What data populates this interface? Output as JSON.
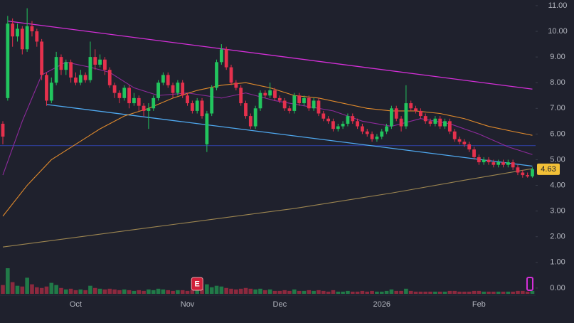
{
  "chart_data": {
    "type": "candlestick",
    "categories": [
      null,
      null,
      null,
      null,
      null,
      null,
      null,
      null,
      null,
      null,
      null,
      null,
      null,
      null,
      null,
      "Oct",
      null,
      null,
      null,
      null,
      null,
      null,
      null,
      null,
      null,
      null,
      null,
      null,
      null,
      null,
      null,
      null,
      null,
      null,
      null,
      null,
      null,
      null,
      "Nov",
      null,
      null,
      null,
      null,
      null,
      null,
      null,
      null,
      null,
      null,
      null,
      null,
      null,
      null,
      null,
      null,
      null,
      null,
      "Dec",
      null,
      null,
      null,
      null,
      null,
      null,
      null,
      null,
      null,
      null,
      null,
      null,
      null,
      null,
      null,
      null,
      null,
      null,
      null,
      null,
      "2026",
      null,
      null,
      null,
      null,
      null,
      null,
      null,
      null,
      null,
      null,
      null,
      null,
      null,
      null,
      null,
      null,
      null,
      null,
      null,
      "Feb",
      null,
      null,
      null,
      null,
      null,
      null,
      null,
      null,
      null,
      null,
      null
    ],
    "ohlc": [
      [
        6.4,
        6.5,
        5.6,
        5.9
      ],
      [
        7.4,
        10.6,
        7.3,
        10.3
      ],
      [
        10.3,
        10.5,
        9.4,
        9.8
      ],
      [
        9.8,
        10.3,
        9.6,
        10.1
      ],
      [
        10.1,
        10.2,
        9.1,
        9.3
      ],
      [
        9.3,
        10.9,
        9.2,
        10.2
      ],
      [
        10.2,
        10.4,
        9.8,
        10.0
      ],
      [
        10.0,
        10.1,
        9.4,
        9.6
      ],
      [
        9.6,
        9.7,
        8.1,
        8.3
      ],
      [
        8.3,
        8.4,
        7.1,
        7.3
      ],
      [
        7.3,
        8.2,
        7.2,
        8.0
      ],
      [
        8.0,
        9.2,
        7.9,
        9.0
      ],
      [
        9.0,
        9.1,
        8.3,
        8.5
      ],
      [
        8.5,
        8.9,
        8.3,
        8.8
      ],
      [
        8.8,
        8.9,
        8.0,
        8.2
      ],
      [
        8.2,
        8.4,
        7.9,
        8.0
      ],
      [
        8.0,
        8.5,
        7.9,
        8.3
      ],
      [
        8.3,
        8.4,
        8.0,
        8.1
      ],
      [
        8.1,
        9.6,
        8.0,
        9.0
      ],
      [
        9.0,
        9.3,
        8.5,
        8.7
      ],
      [
        8.7,
        9.1,
        8.6,
        8.9
      ],
      [
        8.9,
        9.0,
        8.3,
        8.5
      ],
      [
        8.5,
        8.6,
        7.8,
        7.9
      ],
      [
        7.9,
        8.0,
        7.4,
        7.6
      ],
      [
        7.6,
        7.7,
        7.2,
        7.4
      ],
      [
        7.4,
        7.9,
        7.3,
        7.8
      ],
      [
        7.8,
        7.9,
        7.0,
        7.2
      ],
      [
        7.2,
        7.6,
        7.1,
        7.4
      ],
      [
        7.4,
        7.5,
        6.9,
        7.1
      ],
      [
        7.1,
        7.2,
        6.7,
        6.9
      ],
      [
        6.9,
        7.2,
        6.2,
        7.0
      ],
      [
        7.0,
        7.5,
        6.9,
        7.4
      ],
      [
        7.4,
        8.1,
        7.3,
        8.0
      ],
      [
        8.0,
        8.4,
        7.9,
        8.3
      ],
      [
        8.3,
        8.4,
        7.8,
        7.9
      ],
      [
        7.9,
        8.0,
        7.4,
        7.6
      ],
      [
        7.6,
        8.1,
        7.5,
        8.0
      ],
      [
        8.0,
        8.1,
        7.4,
        7.5
      ],
      [
        7.5,
        7.6,
        7.1,
        7.2
      ],
      [
        7.2,
        7.3,
        6.8,
        6.9
      ],
      [
        6.9,
        7.4,
        6.8,
        7.3
      ],
      [
        7.3,
        7.4,
        6.6,
        6.7
      ],
      [
        5.6,
        6.9,
        5.3,
        6.8
      ],
      [
        6.8,
        7.9,
        6.7,
        7.8
      ],
      [
        7.8,
        8.9,
        7.7,
        8.8
      ],
      [
        8.8,
        9.5,
        8.7,
        9.3
      ],
      [
        9.3,
        9.4,
        8.5,
        8.6
      ],
      [
        8.6,
        8.7,
        7.9,
        8.0
      ],
      [
        8.0,
        8.1,
        7.7,
        7.8
      ],
      [
        7.8,
        7.9,
        7.1,
        7.2
      ],
      [
        7.2,
        7.3,
        6.6,
        6.7
      ],
      [
        6.7,
        6.8,
        6.2,
        6.3
      ],
      [
        6.3,
        7.1,
        6.2,
        7.0
      ],
      [
        7.0,
        7.7,
        6.9,
        7.6
      ],
      [
        7.6,
        7.7,
        7.4,
        7.5
      ],
      [
        7.5,
        8.0,
        7.4,
        7.7
      ],
      [
        7.7,
        7.8,
        7.3,
        7.4
      ],
      [
        7.4,
        7.5,
        7.2,
        7.3
      ],
      [
        7.3,
        7.4,
        6.9,
        7.0
      ],
      [
        7.0,
        7.1,
        6.8,
        6.9
      ],
      [
        6.9,
        7.6,
        6.8,
        7.5
      ],
      [
        7.5,
        7.6,
        7.1,
        7.2
      ],
      [
        7.2,
        7.5,
        7.1,
        7.4
      ],
      [
        7.4,
        7.5,
        6.9,
        7.0
      ],
      [
        7.0,
        7.4,
        6.9,
        7.3
      ],
      [
        7.3,
        7.4,
        6.7,
        6.8
      ],
      [
        6.8,
        6.9,
        6.5,
        6.6
      ],
      [
        6.6,
        6.7,
        6.4,
        6.5
      ],
      [
        6.5,
        6.6,
        6.1,
        6.2
      ],
      [
        6.2,
        6.4,
        6.1,
        6.3
      ],
      [
        6.3,
        6.5,
        6.2,
        6.4
      ],
      [
        6.4,
        6.8,
        6.3,
        6.7
      ],
      [
        6.7,
        6.8,
        6.4,
        6.5
      ],
      [
        6.5,
        6.6,
        6.2,
        6.3
      ],
      [
        6.3,
        6.4,
        6.0,
        6.1
      ],
      [
        6.1,
        6.2,
        5.9,
        6.0
      ],
      [
        6.0,
        6.1,
        5.7,
        5.8
      ],
      [
        5.8,
        6.0,
        5.7,
        5.9
      ],
      [
        5.9,
        6.2,
        5.8,
        6.1
      ],
      [
        6.1,
        6.4,
        6.0,
        6.3
      ],
      [
        6.3,
        7.1,
        6.2,
        7.0
      ],
      [
        7.0,
        7.1,
        6.5,
        6.6
      ],
      [
        6.6,
        6.7,
        6.1,
        6.3
      ],
      [
        6.3,
        7.9,
        6.2,
        7.2
      ],
      [
        7.2,
        7.3,
        6.9,
        7.0
      ],
      [
        7.0,
        7.1,
        6.8,
        6.9
      ],
      [
        6.9,
        7.0,
        6.6,
        6.7
      ],
      [
        6.7,
        6.8,
        6.4,
        6.5
      ],
      [
        6.5,
        6.6,
        6.3,
        6.4
      ],
      [
        6.4,
        6.7,
        6.3,
        6.6
      ],
      [
        6.6,
        6.7,
        6.2,
        6.3
      ],
      [
        6.3,
        6.6,
        6.2,
        6.5
      ],
      [
        6.5,
        6.6,
        6.0,
        6.1
      ],
      [
        6.1,
        6.2,
        5.7,
        5.8
      ],
      [
        5.8,
        5.9,
        5.6,
        5.7
      ],
      [
        5.7,
        5.8,
        5.5,
        5.6
      ],
      [
        5.6,
        5.7,
        5.3,
        5.4
      ],
      [
        5.4,
        5.5,
        5.0,
        5.1
      ],
      [
        5.1,
        5.2,
        4.8,
        4.9
      ],
      [
        4.9,
        5.1,
        4.8,
        5.0
      ],
      [
        5.0,
        5.1,
        4.8,
        4.9
      ],
      [
        4.9,
        5.0,
        4.7,
        4.8
      ],
      [
        4.8,
        5.0,
        4.7,
        4.9
      ],
      [
        4.9,
        5.0,
        4.7,
        4.8
      ],
      [
        4.8,
        5.0,
        4.7,
        4.9
      ],
      [
        4.9,
        5.0,
        4.6,
        4.7
      ],
      [
        4.7,
        4.8,
        4.4,
        4.5
      ],
      [
        4.5,
        4.6,
        4.3,
        4.4
      ],
      [
        4.4,
        4.5,
        4.3,
        4.35
      ],
      [
        4.35,
        4.7,
        4.3,
        4.63
      ]
    ],
    "volume": [
      1.2,
      3.5,
      1.6,
      1.1,
      1.0,
      2.2,
      1.3,
      0.9,
      0.8,
      1.0,
      1.5,
      1.2,
      0.8,
      0.6,
      0.7,
      0.5,
      0.6,
      0.5,
      1.1,
      0.8,
      0.7,
      0.6,
      0.7,
      0.6,
      0.5,
      0.6,
      0.5,
      0.4,
      0.5,
      0.4,
      0.6,
      0.5,
      0.7,
      0.6,
      0.5,
      0.4,
      0.5,
      0.5,
      0.4,
      0.5,
      0.6,
      0.7,
      1.3,
      0.9,
      1.1,
      1.0,
      0.8,
      0.7,
      0.6,
      0.7,
      0.8,
      0.7,
      0.6,
      0.7,
      0.5,
      0.6,
      0.4,
      0.4,
      0.5,
      0.4,
      0.6,
      0.4,
      0.4,
      0.5,
      0.4,
      0.5,
      0.4,
      0.3,
      0.5,
      0.3,
      0.3,
      0.4,
      0.3,
      0.3,
      0.4,
      0.3,
      0.4,
      0.3,
      0.3,
      0.4,
      0.6,
      0.4,
      0.4,
      0.7,
      0.4,
      0.3,
      0.3,
      0.3,
      0.3,
      0.3,
      0.3,
      0.3,
      0.4,
      0.4,
      0.3,
      0.3,
      0.3,
      0.4,
      0.4,
      0.3,
      0.3,
      0.3,
      0.3,
      0.3,
      0.3,
      0.3,
      0.4,
      0.4,
      0.3,
      0.4
    ],
    "up_color": "#22c55e",
    "down_color": "#e5314d",
    "lines": [
      {
        "color": "#d42fd8",
        "x": [
          1,
          109
        ],
        "values": [
          10.4,
          7.75
        ]
      },
      {
        "color": "#4fa9f0",
        "x": [
          9,
          109
        ],
        "values": [
          7.15,
          4.75
        ]
      },
      {
        "color": "#8e2a9c",
        "x": [
          0,
          4,
          8,
          13,
          18,
          22,
          27,
          32,
          38,
          45,
          50,
          56,
          62,
          68,
          74,
          80,
          86,
          92,
          98,
          104,
          109
        ],
        "values": [
          4.4,
          6.5,
          8.3,
          8.8,
          8.6,
          8.4,
          7.8,
          7.5,
          7.6,
          7.4,
          7.6,
          7.3,
          7.1,
          6.9,
          6.5,
          6.3,
          6.6,
          6.4,
          6.0,
          5.5,
          5.2
        ]
      },
      {
        "color": "#e08a2c",
        "x": [
          0,
          5,
          10,
          15,
          20,
          25,
          30,
          35,
          40,
          45,
          50,
          55,
          60,
          65,
          70,
          75,
          80,
          85,
          90,
          95,
          100,
          105,
          109
        ],
        "values": [
          2.8,
          4.0,
          5.0,
          5.6,
          6.2,
          6.7,
          7.0,
          7.4,
          7.7,
          7.9,
          8.0,
          7.8,
          7.5,
          7.4,
          7.2,
          7.0,
          6.9,
          6.9,
          6.8,
          6.6,
          6.3,
          6.1,
          5.95
        ]
      },
      {
        "color": "#9c8550",
        "x": [
          0,
          30,
          60,
          80,
          95,
          109
        ],
        "values": [
          1.6,
          2.35,
          3.1,
          3.7,
          4.2,
          4.65
        ]
      }
    ],
    "hline": {
      "value": 5.55,
      "color": "#2c3a8c"
    },
    "events": [
      {
        "index": 40,
        "label": "E",
        "color": "#d0203a"
      }
    ],
    "last_price_color": "#f2c037",
    "ylim": [
      -0.28,
      11.22
    ],
    "yticks": [
      {
        "value": 0,
        "label": "0.00"
      },
      {
        "value": 1,
        "label": "1.00"
      },
      {
        "value": 2,
        "label": "2.00"
      },
      {
        "value": 3,
        "label": "3.00"
      },
      {
        "value": 4,
        "label": "4.00"
      },
      {
        "value": 5,
        "label": "5.00"
      },
      {
        "value": 6,
        "label": "6.00"
      },
      {
        "value": 7,
        "label": "7.00"
      },
      {
        "value": 8,
        "label": "8.00"
      },
      {
        "value": 9,
        "label": "9.00"
      },
      {
        "value": 10,
        "label": "10.00"
      },
      {
        "value": 11,
        "label": "11.00"
      }
    ]
  }
}
